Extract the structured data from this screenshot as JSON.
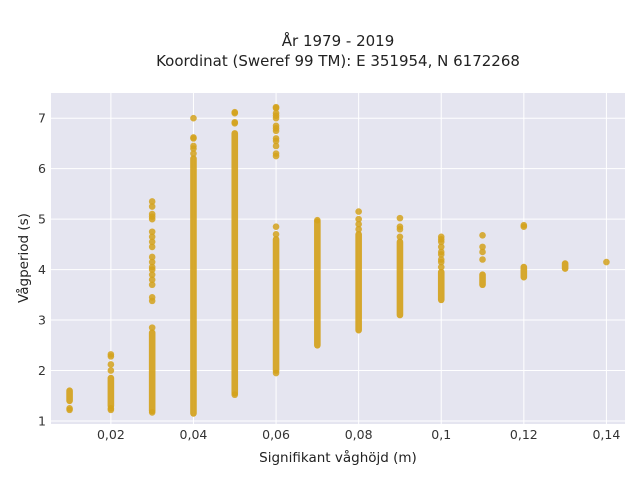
{
  "chart_data": {
    "type": "scatter",
    "title": [
      "År 1979 - 2019",
      "Koordinat (Sweref 99 TM): E 351954, N 6172268"
    ],
    "xlabel": "Signifikant våghöjd (m)",
    "ylabel": "Vågperiod (s)",
    "xlim": [
      0.0055,
      0.1445
    ],
    "ylim": [
      0.94,
      7.5
    ],
    "x_ticks": [
      0.02,
      0.04,
      0.06,
      0.08,
      0.1,
      0.12,
      0.14
    ],
    "x_tick_labels": [
      "0,02",
      "0,04",
      "0,06",
      "0,08",
      "0,1",
      "0,12",
      "0,14"
    ],
    "y_ticks": [
      1,
      2,
      3,
      4,
      5,
      6,
      7
    ],
    "y_tick_labels": [
      "1",
      "2",
      "3",
      "4",
      "5",
      "6",
      "7"
    ],
    "grid": true,
    "legend": "none",
    "colors": {
      "marker": "#d4a21c",
      "plot_background": "#e5e5f0",
      "grid": "#ffffff"
    },
    "series": [
      {
        "columns": [
          {
            "x": 0.01,
            "bands": [
              [
                1.4,
                1.6
              ]
            ],
            "points": [
              1.22,
              1.25
            ]
          },
          {
            "x": 0.02,
            "bands": [
              [
                1.3,
                1.85
              ]
            ],
            "points": [
              1.22,
              1.25,
              2.0,
              2.12,
              2.28,
              2.32
            ]
          },
          {
            "x": 0.03,
            "bands": [
              [
                1.2,
                2.75
              ]
            ],
            "points": [
              1.17,
              2.85,
              3.38,
              3.45,
              3.7,
              3.8,
              3.9,
              4.0,
              4.05,
              4.15,
              4.25,
              4.45,
              4.55,
              4.65,
              4.75,
              5.0,
              5.05,
              5.1,
              5.25,
              5.35
            ]
          },
          {
            "x": 0.04,
            "bands": [
              [
                1.15,
                6.2
              ]
            ],
            "points": [
              6.3,
              6.4,
              6.45,
              6.6,
              6.62,
              7.0
            ]
          },
          {
            "x": 0.05,
            "bands": [
              [
                1.55,
                6.7
              ]
            ],
            "points": [
              1.52,
              6.9,
              6.92,
              7.1,
              7.12
            ]
          },
          {
            "x": 0.06,
            "bands": [
              [
                2.0,
                4.6
              ]
            ],
            "points": [
              1.95,
              4.7,
              4.85,
              6.25,
              6.3,
              6.45,
              6.55,
              6.6,
              6.75,
              6.8,
              6.85,
              7.0,
              7.05,
              7.1,
              7.2,
              7.22
            ]
          },
          {
            "x": 0.07,
            "bands": [
              [
                2.5,
                4.95
              ]
            ],
            "points": [
              4.98
            ]
          },
          {
            "x": 0.08,
            "bands": [
              [
                2.8,
                4.7
              ]
            ],
            "points": [
              4.8,
              4.9,
              5.0,
              5.15
            ]
          },
          {
            "x": 0.09,
            "bands": [
              [
                3.1,
                4.55
              ]
            ],
            "points": [
              4.65,
              4.8,
              4.85,
              5.02
            ]
          },
          {
            "x": 0.1,
            "bands": [
              [
                3.4,
                3.95
              ]
            ],
            "points": [
              4.05,
              4.15,
              4.2,
              4.3,
              4.35,
              4.45,
              4.55,
              4.6,
              4.65
            ]
          },
          {
            "x": 0.11,
            "bands": [
              [
                3.7,
                3.9
              ]
            ],
            "points": [
              4.2,
              4.35,
              4.45,
              4.68
            ]
          },
          {
            "x": 0.12,
            "bands": [
              [
                3.85,
                4.05
              ]
            ],
            "points": [
              4.85,
              4.88
            ]
          },
          {
            "x": 0.13,
            "bands": [
              [
                4.02,
                4.12
              ]
            ],
            "points": []
          },
          {
            "x": 0.14,
            "bands": [],
            "points": [
              4.15
            ]
          }
        ]
      }
    ]
  }
}
